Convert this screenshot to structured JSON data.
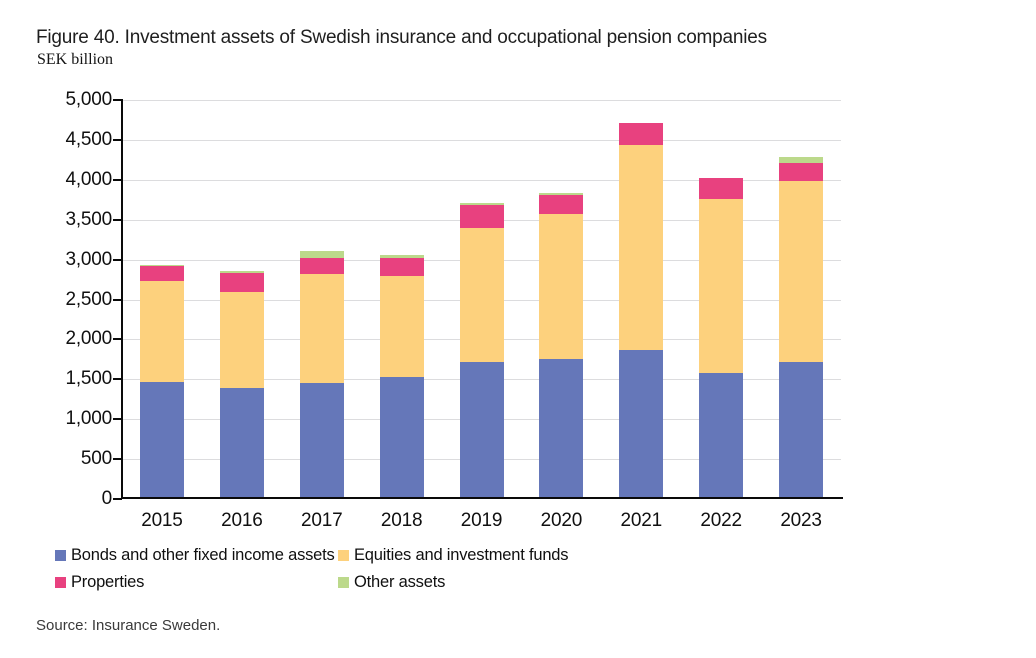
{
  "header": {
    "title": "Figure 40. Investment assets of Swedish insurance and occupational pension companies",
    "subtitle": "SEK billion"
  },
  "source": "Source: Insurance Sweden.",
  "colors": {
    "bonds": "#6577B9",
    "equities": "#FDD17D",
    "properties": "#E8417F",
    "other": "#BCD98B",
    "gridline": "#DCDCDE",
    "axis": "#0A0A0A"
  },
  "legend": {
    "items": [
      {
        "name": "bonds",
        "label": "Bonds and other fixed income assets",
        "color": "#6577B9"
      },
      {
        "name": "equities",
        "label": "Equities and investment funds",
        "color": "#FDD17D"
      },
      {
        "name": "properties",
        "label": "Properties",
        "color": "#E8417F"
      },
      {
        "name": "other",
        "label": "Other assets",
        "color": "#BCD98B"
      }
    ]
  },
  "chart_data": {
    "type": "bar",
    "stacked": true,
    "title": "Figure 40. Investment assets of Swedish insurance and occupational pension companies",
    "ylabel": "SEK billion",
    "xlabel": "",
    "grid": true,
    "legend_position": "bottom",
    "ylim": [
      0,
      5000
    ],
    "ytick_step": 500,
    "ytick_labels": [
      "0",
      "500",
      "1,000",
      "1,500",
      "2,000",
      "2,500",
      "3,000",
      "3,500",
      "4,000",
      "4,500",
      "5,000"
    ],
    "categories": [
      "2015",
      "2016",
      "2017",
      "2018",
      "2019",
      "2020",
      "2021",
      "2022",
      "2023"
    ],
    "series": [
      {
        "name": "Bonds and other fixed income assets",
        "key": "bonds",
        "color": "#6577B9",
        "values": [
          1465,
          1390,
          1455,
          1530,
          1720,
          1750,
          1865,
          1585,
          1720
        ]
      },
      {
        "name": "Equities and investment funds",
        "key": "equities",
        "color": "#FDD17D",
        "values": [
          1265,
          1205,
          1360,
          1260,
          1680,
          1820,
          2575,
          2180,
          2265
        ]
      },
      {
        "name": "Properties",
        "key": "properties",
        "color": "#E8417F",
        "values": [
          185,
          235,
          210,
          230,
          280,
          235,
          270,
          260,
          225
        ]
      },
      {
        "name": "Other assets",
        "key": "other",
        "color": "#BCD98B",
        "values": [
          15,
          25,
          85,
          35,
          30,
          30,
          0,
          0,
          75
        ]
      }
    ],
    "totals": [
      2930,
      2855,
      3110,
      3055,
      3710,
      3835,
      4710,
      4025,
      4285
    ]
  }
}
